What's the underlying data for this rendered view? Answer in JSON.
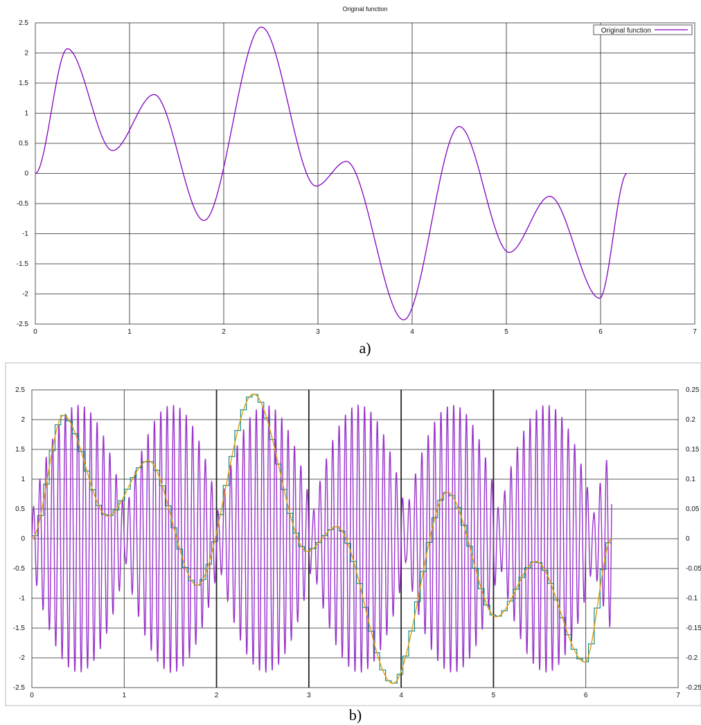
{
  "chart_data": [
    {
      "type": "line",
      "title": "Original function",
      "caption": "a)",
      "xlim": [
        0,
        7
      ],
      "ylim": [
        -2.5,
        2.5
      ],
      "x_ticks": [
        "0",
        "1",
        "2",
        "3",
        "4",
        "5",
        "6",
        "7"
      ],
      "y_ticks": [
        "2.5",
        "2",
        "1.5",
        "1",
        "0.5",
        "0",
        "-0.5",
        "-1",
        "-1.5",
        "-2",
        "-2.5"
      ],
      "grid": true,
      "legend": {
        "placement": "top-right",
        "entries": [
          "Original function"
        ]
      },
      "series": [
        {
          "name": "Original function",
          "color": "#8000c0",
          "x": [
            0,
            0.34,
            0.82,
            1.26,
            1.79,
            2.4,
            2.98,
            3.3,
            3.91,
            4.5,
            5.03,
            5.46,
            5.99,
            6.28
          ],
          "y": [
            0,
            2.07,
            0.38,
            1.31,
            -0.78,
            2.43,
            -0.21,
            0.2,
            -2.43,
            0.78,
            -1.31,
            -0.38,
            -2.07,
            0
          ]
        }
      ]
    },
    {
      "type": "line",
      "caption": "b)",
      "xlim": [
        0,
        7
      ],
      "ylim": [
        -2.5,
        2.5
      ],
      "y2lim": [
        -0.25,
        0.25
      ],
      "x_ticks": [
        "0",
        "1",
        "2",
        "3",
        "4",
        "5",
        "6",
        "7"
      ],
      "y_ticks": [
        "2.5",
        "2",
        "1.5",
        "1",
        "0.5",
        "0",
        "-0.5",
        "-1",
        "-1.5",
        "-2",
        "-2.5"
      ],
      "y2_ticks": [
        "0.25",
        "0.2",
        "0.15",
        "0.1",
        "0.05",
        "0",
        "-0.05",
        "-0.1",
        "-0.15",
        "-0.2",
        "-0.25"
      ],
      "grid": true,
      "series_colors": {
        "original": "#ff8c00",
        "smooth": "#9acd32",
        "step": "#008080",
        "oscillation": "#9932cc"
      }
    }
  ]
}
